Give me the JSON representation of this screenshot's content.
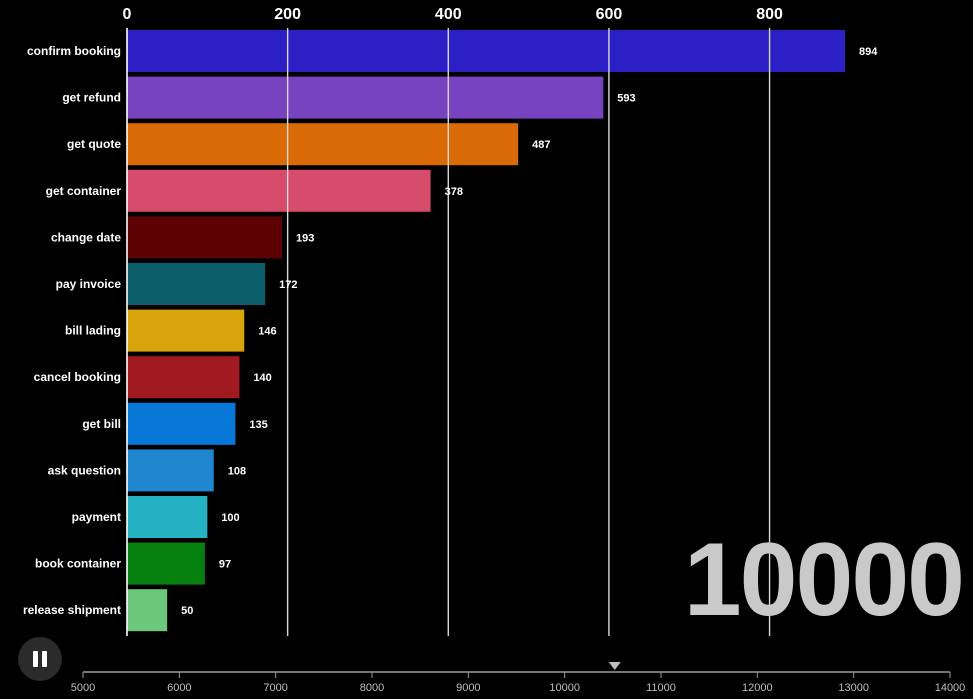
{
  "chart_data": {
    "type": "bar",
    "orientation": "horizontal",
    "categories": [
      "confirm booking",
      "get refund",
      "get quote",
      "get container",
      "change date",
      "pay invoice",
      "bill lading",
      "cancel booking",
      "get bill",
      "ask question",
      "payment",
      "book container",
      "release shipment"
    ],
    "values": [
      894,
      593,
      487,
      378,
      193,
      172,
      146,
      140,
      135,
      108,
      100,
      97,
      50
    ],
    "colors": [
      "#2b1fc6",
      "#7743c0",
      "#d96a05",
      "#d64c6a",
      "#5c0205",
      "#0a5f6b",
      "#d9a40b",
      "#a01a1f",
      "#0778d8",
      "#1f86d0",
      "#24b1c2",
      "#06800e",
      "#6cc77a"
    ],
    "xlim": [
      0,
      900
    ],
    "xticks": [
      0,
      200,
      400,
      600,
      800
    ],
    "xaxis_position": "top",
    "grid": true,
    "time_label": "10000"
  },
  "player": {
    "timeline_ticks": [
      5000,
      6000,
      7000,
      8000,
      9000,
      10000,
      11000,
      12000,
      13000,
      14000
    ],
    "timeline_range": [
      5000,
      14000
    ],
    "current_time": 10520
  }
}
